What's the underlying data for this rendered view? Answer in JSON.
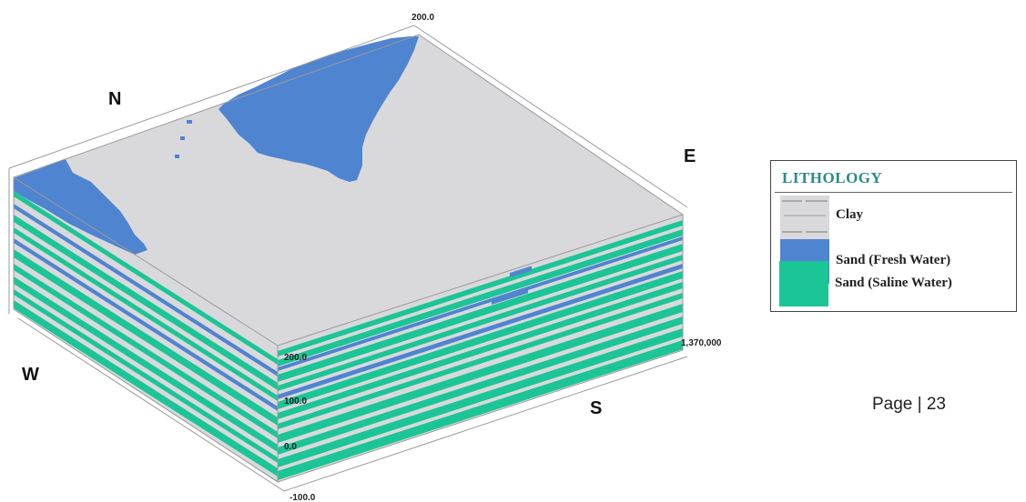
{
  "compass": {
    "north": "N",
    "east": "E",
    "south": "S",
    "west": "W"
  },
  "axis_labels": {
    "top_corner": "200.0",
    "easting": "1,370,000",
    "depth_ticks": [
      "200.0",
      "100.0",
      "0.0",
      "-100.0"
    ]
  },
  "legend": {
    "title": "LITHOLOGY",
    "items": [
      {
        "label": "Clay",
        "color": "#d9d9dc"
      },
      {
        "label": "Sand (Fresh Water)",
        "color": "#4f84d0"
      },
      {
        "label": "Sand (Saline Water)",
        "color": "#1cc596"
      }
    ]
  },
  "page_number": "Page | 23"
}
